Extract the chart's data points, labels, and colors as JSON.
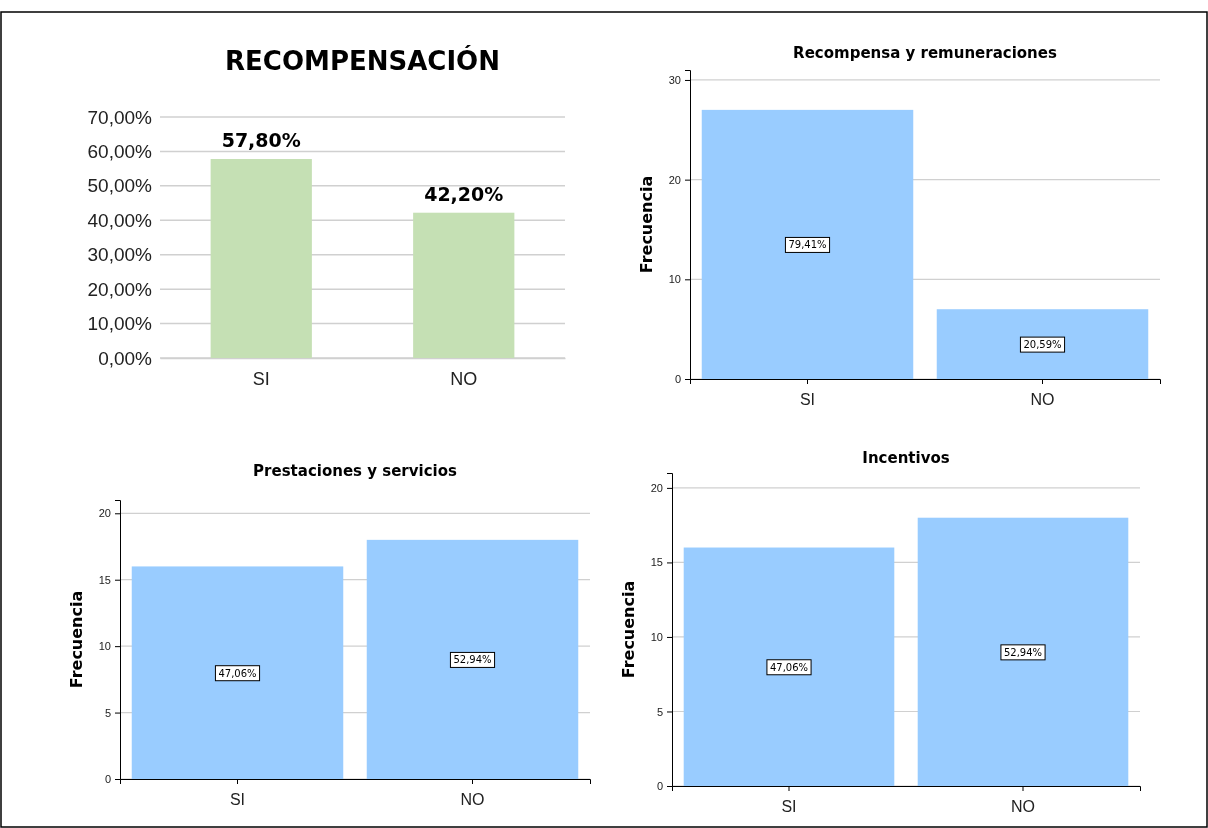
{
  "chart_data": [
    {
      "type": "bar",
      "title": "RECOMPENSACIÓN",
      "categories": [
        "SI",
        "NO"
      ],
      "values": [
        57.8,
        42.2
      ],
      "color": "#c5e0b4",
      "value_labels": [
        "57,80%",
        "42,20%"
      ],
      "ylim": [
        0,
        70
      ],
      "yticks": [
        {
          "value": 0,
          "label": "0,00%"
        },
        {
          "value": 10,
          "label": "10,00%"
        },
        {
          "value": 20,
          "label": "20,00%"
        },
        {
          "value": 30,
          "label": "30,00%"
        },
        {
          "value": 40,
          "label": "40,00%"
        },
        {
          "value": 50,
          "label": "50,00%"
        },
        {
          "value": 60,
          "label": "60,00%"
        },
        {
          "value": 70,
          "label": "70,00%"
        }
      ],
      "grid": "y"
    },
    {
      "type": "bar",
      "title": "Recompensa y remuneraciones",
      "ylabel": "Frecuencia",
      "categories": [
        "SI",
        "NO"
      ],
      "values": [
        27,
        7
      ],
      "color": "#99ccff",
      "annotations": [
        "79,41%",
        "20,59%"
      ],
      "ylim": [
        0,
        31
      ],
      "yticks": [
        0,
        10,
        20,
        30
      ],
      "grid": "y"
    },
    {
      "type": "bar",
      "title": "Prestaciones y servicios",
      "ylabel": "Frecuencia",
      "categories": [
        "SI",
        "NO"
      ],
      "values": [
        16,
        18
      ],
      "color": "#99ccff",
      "annotations": [
        "47,06%",
        "52,94%"
      ],
      "ylim": [
        0,
        21
      ],
      "yticks": [
        0,
        5,
        10,
        15,
        20
      ],
      "grid": "y"
    },
    {
      "type": "bar",
      "title": "Incentivos",
      "ylabel": "Frecuencia",
      "categories": [
        "SI",
        "NO"
      ],
      "values": [
        16,
        18
      ],
      "color": "#99ccff",
      "annotations": [
        "47,06%",
        "52,94%"
      ],
      "ylim": [
        0,
        21
      ],
      "yticks": [
        0,
        5,
        10,
        15,
        20
      ],
      "grid": "y"
    }
  ]
}
